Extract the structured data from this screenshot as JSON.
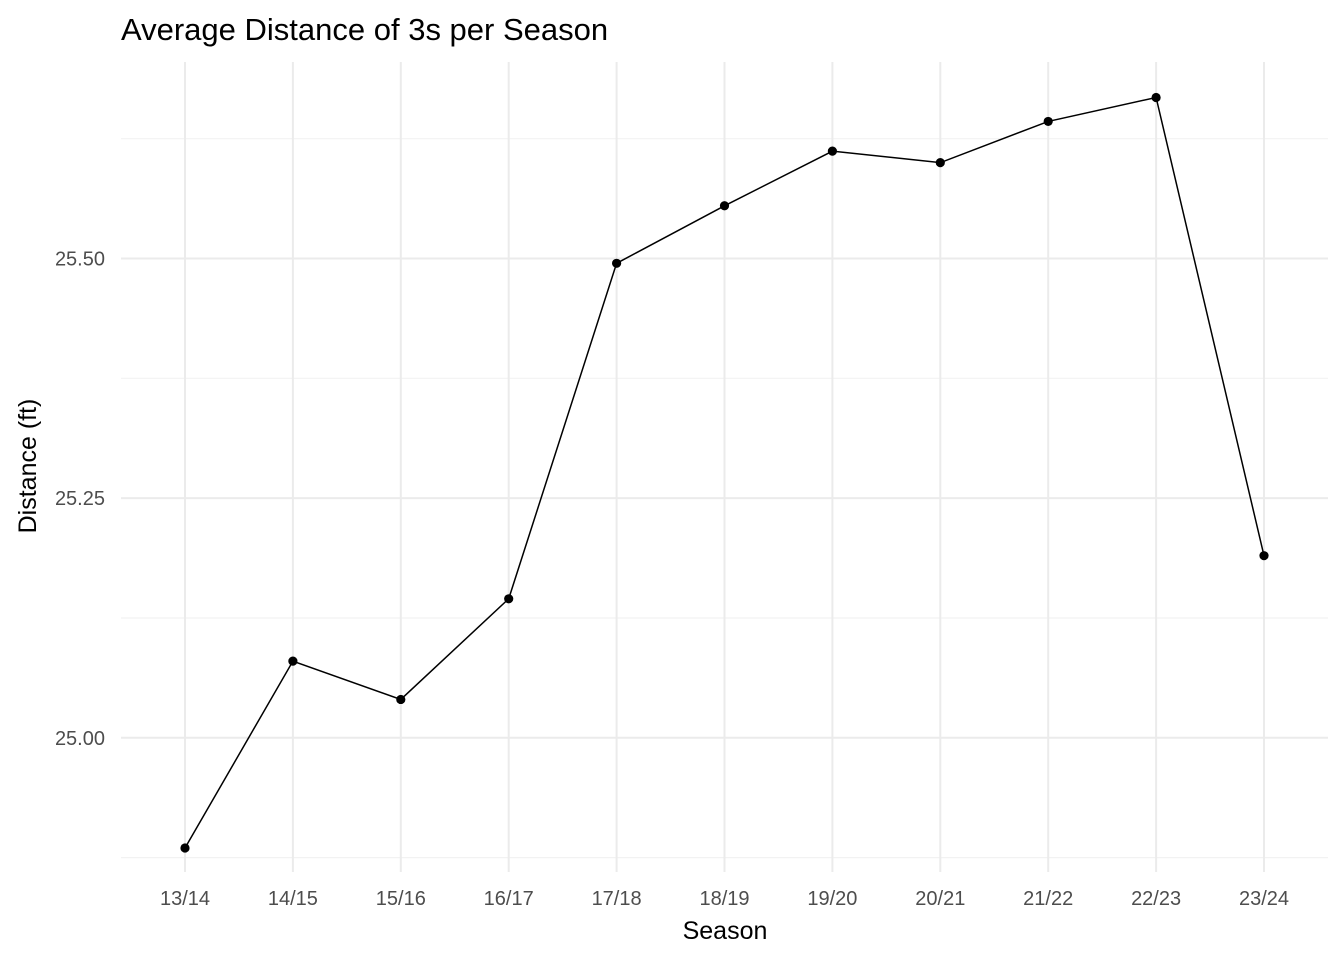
{
  "chart_data": {
    "type": "line",
    "title": "Average Distance of 3s per Season",
    "xlabel": "Season",
    "ylabel": "Distance (ft)",
    "categories": [
      "13/14",
      "14/15",
      "15/16",
      "16/17",
      "17/18",
      "18/19",
      "19/20",
      "20/21",
      "21/22",
      "22/23",
      "23/24"
    ],
    "values": [
      24.885,
      25.08,
      25.04,
      25.145,
      25.495,
      25.555,
      25.612,
      25.6,
      25.643,
      25.668,
      25.19
    ],
    "y_ticks": [
      "25.00",
      "25.25",
      "25.50"
    ],
    "ylim": [
      24.86,
      25.705
    ],
    "grid": true,
    "color": "#000000"
  }
}
